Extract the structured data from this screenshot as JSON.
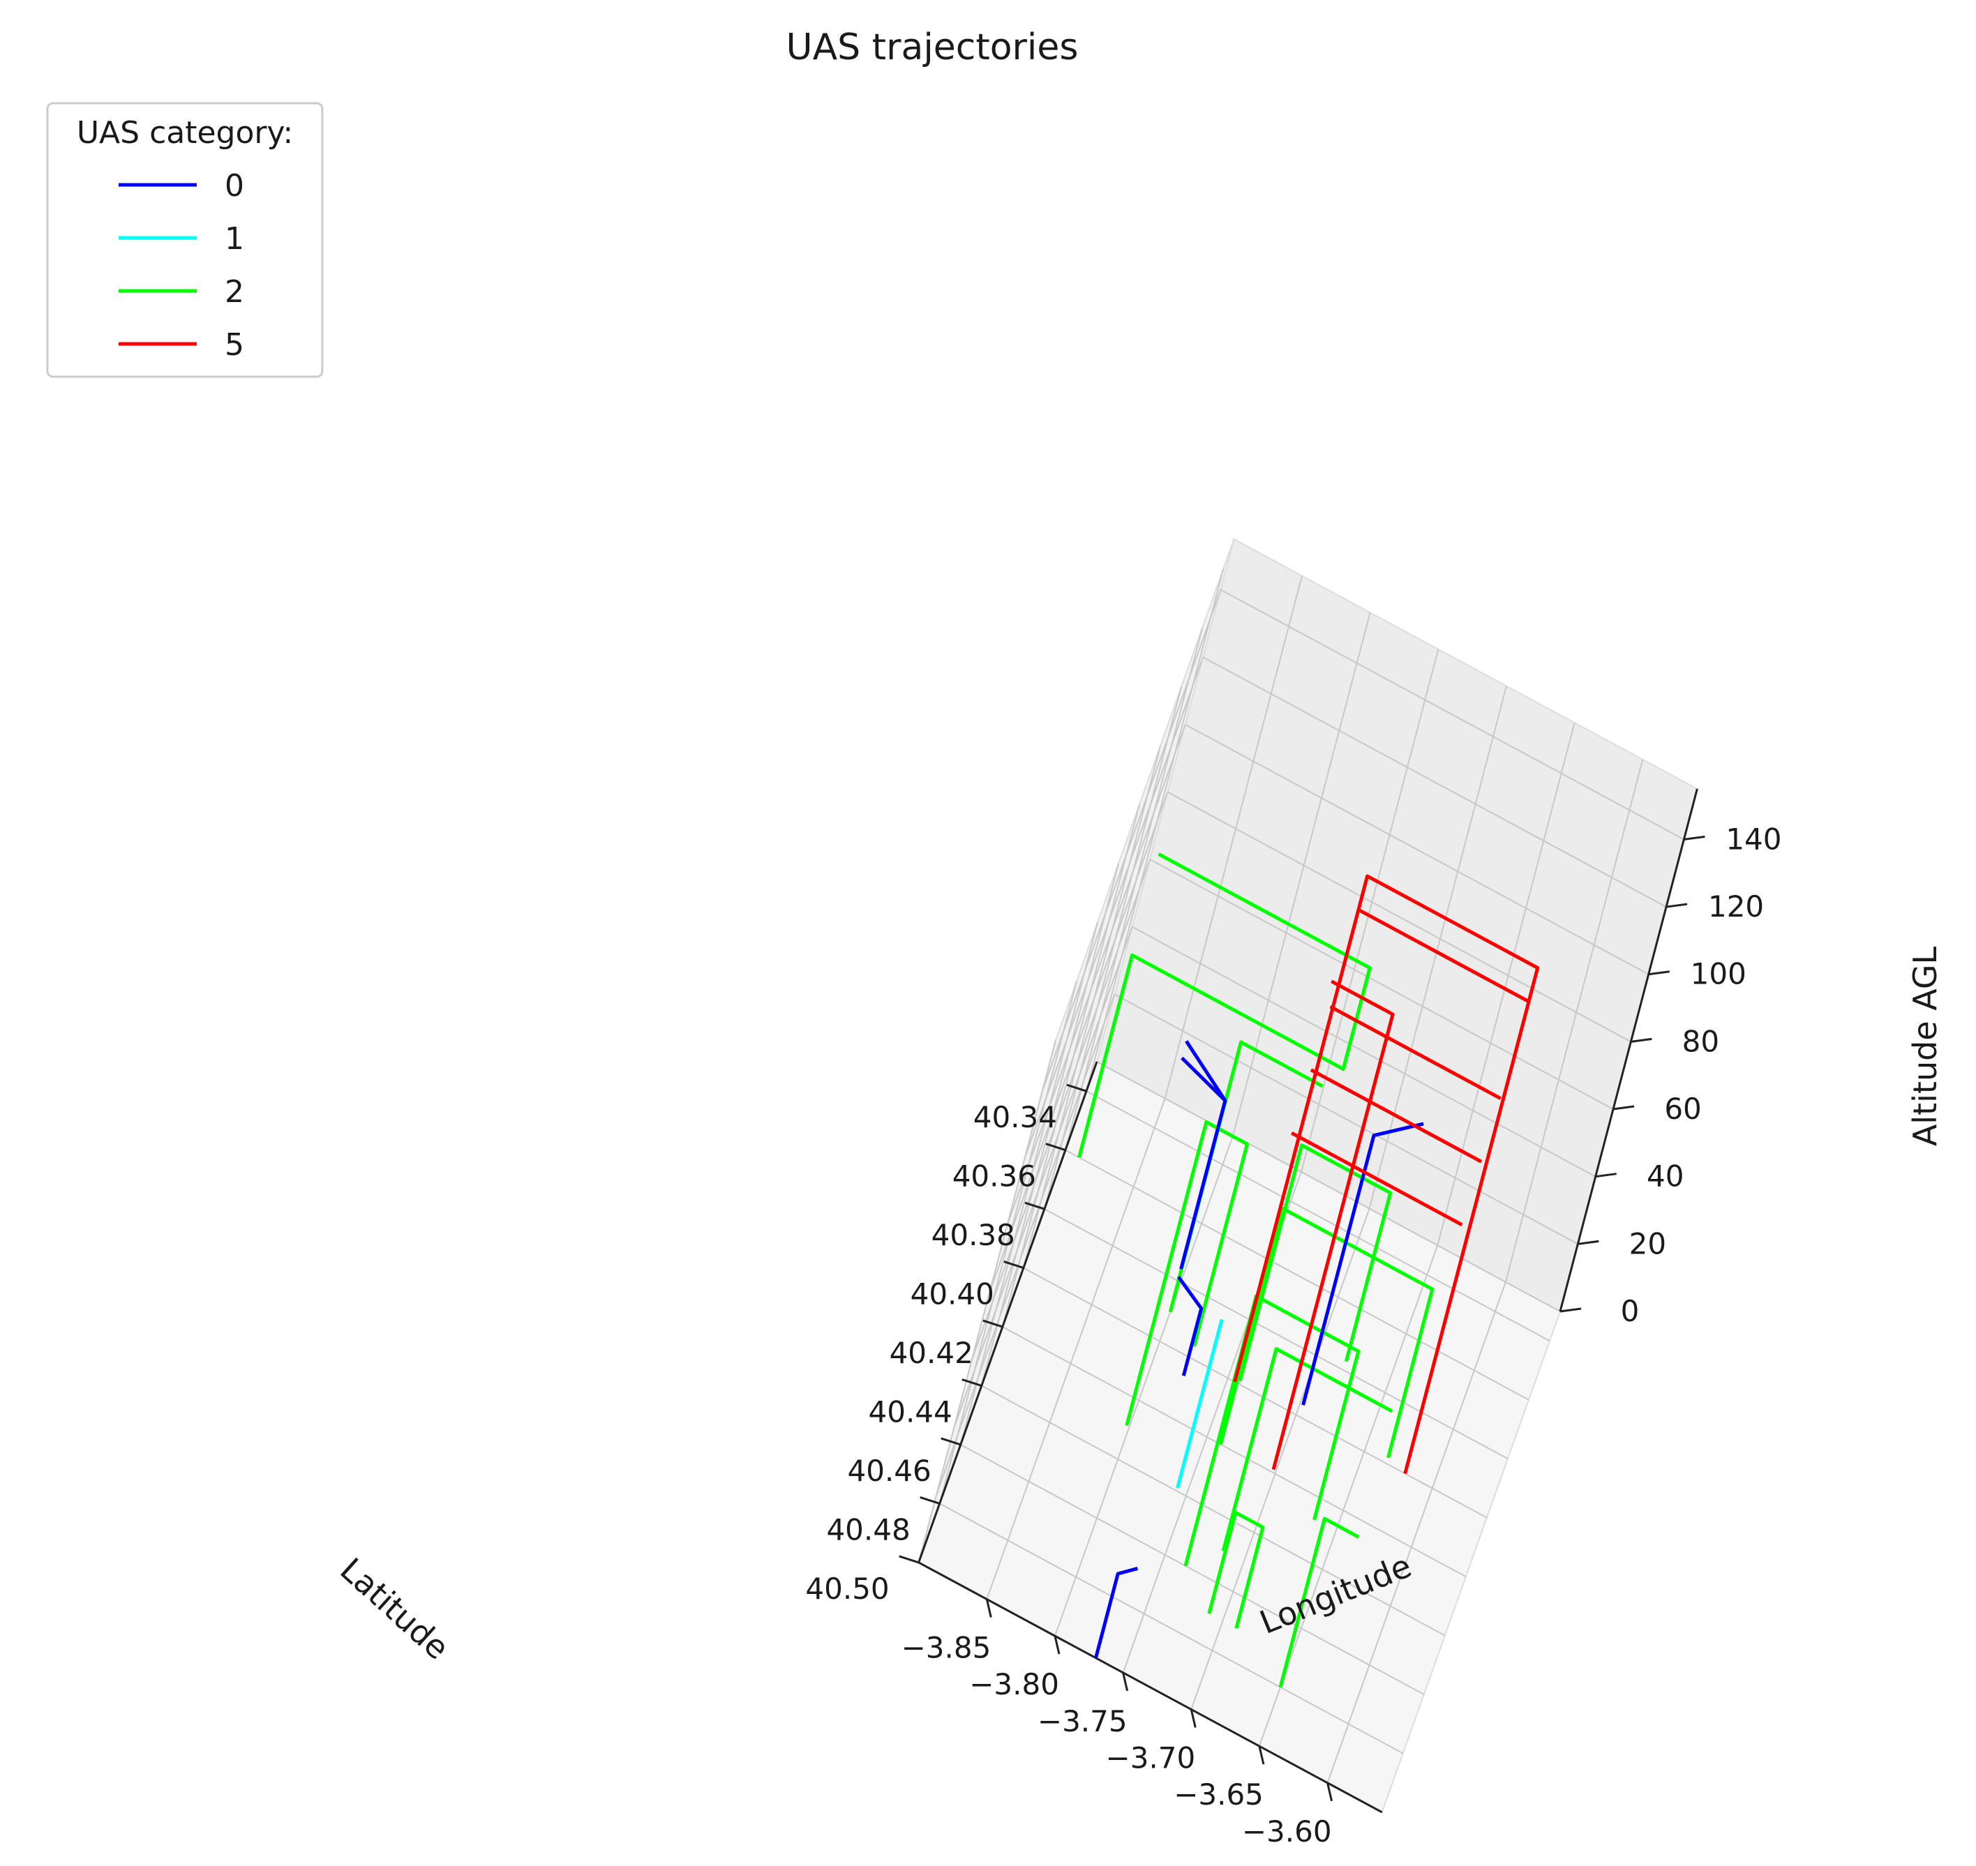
{
  "chart_data": {
    "type": "line",
    "projection": "3d",
    "title": "UAS trajectories",
    "xlabel": "Latitude",
    "ylabel": "Longitude",
    "zlabel": "Altitude AGL",
    "x_ticks": [
      "40.34",
      "40.36",
      "40.38",
      "40.40",
      "40.42",
      "40.44",
      "40.46",
      "40.48",
      "40.50"
    ],
    "y_ticks": [
      "−3.85",
      "−3.80",
      "−3.75",
      "−3.70",
      "−3.65",
      "−3.60"
    ],
    "z_ticks": [
      "0",
      "20",
      "40",
      "60",
      "80",
      "100",
      "120",
      "140"
    ],
    "xlim": [
      40.33,
      40.5
    ],
    "ylim": [
      -3.9,
      -3.56
    ],
    "zlim": [
      0,
      150
    ],
    "grid": true,
    "legend": {
      "title": "UAS category:",
      "placement": "upper-left",
      "entries": [
        {
          "label": "0",
          "color": "#0000ff"
        },
        {
          "label": "1",
          "color": "#00ffff"
        },
        {
          "label": "2",
          "color": "#00ff00"
        },
        {
          "label": "5",
          "color": "#ff0000"
        }
      ]
    },
    "series": [
      {
        "category": "2",
        "color": "#00ff00",
        "points": [
          [
            40.36,
            -3.89,
            0
          ],
          [
            40.36,
            -3.89,
            60
          ],
          [
            40.36,
            -3.735,
            60
          ],
          [
            40.36,
            -3.735,
            90
          ],
          [
            40.36,
            -3.89,
            90
          ]
        ]
      },
      {
        "category": "2",
        "color": "#00ff00",
        "points": [
          [
            40.39,
            -3.8,
            0
          ],
          [
            40.39,
            -3.8,
            80
          ],
          [
            40.39,
            -3.74,
            80
          ]
        ]
      },
      {
        "category": "2",
        "color": "#00ff00",
        "points": [
          [
            40.41,
            -3.74,
            10
          ],
          [
            40.41,
            -3.74,
            80
          ],
          [
            40.41,
            -3.675,
            80
          ],
          [
            40.41,
            -3.675,
            30
          ]
        ]
      },
      {
        "category": "2",
        "color": "#00ff00",
        "points": [
          [
            40.42,
            -3.74,
            0
          ],
          [
            40.42,
            -3.74,
            70
          ],
          [
            40.42,
            -3.63,
            70
          ],
          [
            40.42,
            -3.63,
            20
          ]
        ]
      },
      {
        "category": "2",
        "color": "#00ff00",
        "points": [
          [
            40.45,
            -3.715,
            0
          ],
          [
            40.45,
            -3.715,
            60
          ],
          [
            40.45,
            -3.63,
            60
          ]
        ]
      },
      {
        "category": "2",
        "color": "#00ff00",
        "points": [
          [
            40.44,
            -3.8,
            10
          ],
          [
            40.44,
            -3.8,
            100
          ],
          [
            40.44,
            -3.77,
            100
          ],
          [
            40.44,
            -3.77,
            40
          ]
        ]
      },
      {
        "category": "2",
        "color": "#00ff00",
        "points": [
          [
            40.46,
            -3.735,
            0
          ],
          [
            40.46,
            -3.735,
            80
          ],
          [
            40.46,
            -3.66,
            80
          ],
          [
            40.46,
            -3.66,
            30
          ]
        ]
      },
      {
        "category": "2",
        "color": "#00ff00",
        "points": [
          [
            40.47,
            -3.71,
            0
          ],
          [
            40.47,
            -3.71,
            30
          ],
          [
            40.47,
            -3.69,
            30
          ],
          [
            40.47,
            -3.69,
            0
          ]
        ]
      },
      {
        "category": "2",
        "color": "#00ff00",
        "points": [
          [
            40.48,
            -3.65,
            0
          ],
          [
            40.48,
            -3.65,
            50
          ],
          [
            40.48,
            -3.625,
            50
          ]
        ]
      },
      {
        "category": "0",
        "color": "#0000ff",
        "points": [
          [
            40.42,
            -3.795,
            40
          ],
          [
            40.42,
            -3.795,
            90
          ],
          [
            40.42,
            -3.83,
            100
          ]
        ]
      },
      {
        "category": "0",
        "color": "#0000ff",
        "points": [
          [
            40.42,
            -3.795,
            90
          ],
          [
            40.42,
            -3.83,
            95
          ]
        ]
      },
      {
        "category": "0",
        "color": "#0000ff",
        "points": [
          [
            40.45,
            -3.77,
            40
          ],
          [
            40.45,
            -3.77,
            60
          ],
          [
            40.45,
            -3.79,
            65
          ]
        ]
      },
      {
        "category": "0",
        "color": "#0000ff",
        "points": [
          [
            40.44,
            -3.69,
            40
          ],
          [
            40.44,
            -3.69,
            120
          ],
          [
            40.44,
            -3.66,
            130
          ]
        ]
      },
      {
        "category": "0",
        "color": "#0000ff",
        "points": [
          [
            40.5,
            -3.77,
            0
          ],
          [
            40.5,
            -3.77,
            25
          ],
          [
            40.49,
            -3.76,
            20
          ]
        ]
      },
      {
        "category": "1",
        "color": "#00ffff",
        "points": [
          [
            40.45,
            -3.755,
            10
          ],
          [
            40.45,
            -3.755,
            60
          ]
        ]
      },
      {
        "category": "5",
        "color": "#ff0000",
        "points": [
          [
            40.4,
            -3.745,
            0
          ],
          [
            40.4,
            -3.745,
            150
          ],
          [
            40.4,
            -3.62,
            150
          ],
          [
            40.4,
            -3.62,
            0
          ]
        ]
      },
      {
        "category": "5",
        "color": "#ff0000",
        "points": [
          [
            40.4,
            -3.745,
            140
          ],
          [
            40.4,
            -3.62,
            140
          ]
        ]
      },
      {
        "category": "5",
        "color": "#ff0000",
        "points": [
          [
            40.41,
            -3.745,
            120
          ],
          [
            40.41,
            -3.62,
            120
          ]
        ]
      },
      {
        "category": "5",
        "color": "#ff0000",
        "points": [
          [
            40.42,
            -3.745,
            110
          ],
          [
            40.42,
            -3.62,
            110
          ]
        ]
      },
      {
        "category": "5",
        "color": "#ff0000",
        "points": [
          [
            40.43,
            -3.745,
            100
          ],
          [
            40.43,
            -3.62,
            100
          ]
        ]
      },
      {
        "category": "5",
        "color": "#ff0000",
        "points": [
          [
            40.43,
            -3.7,
            10
          ],
          [
            40.43,
            -3.7,
            145
          ],
          [
            40.43,
            -3.745,
            145
          ]
        ]
      }
    ]
  }
}
